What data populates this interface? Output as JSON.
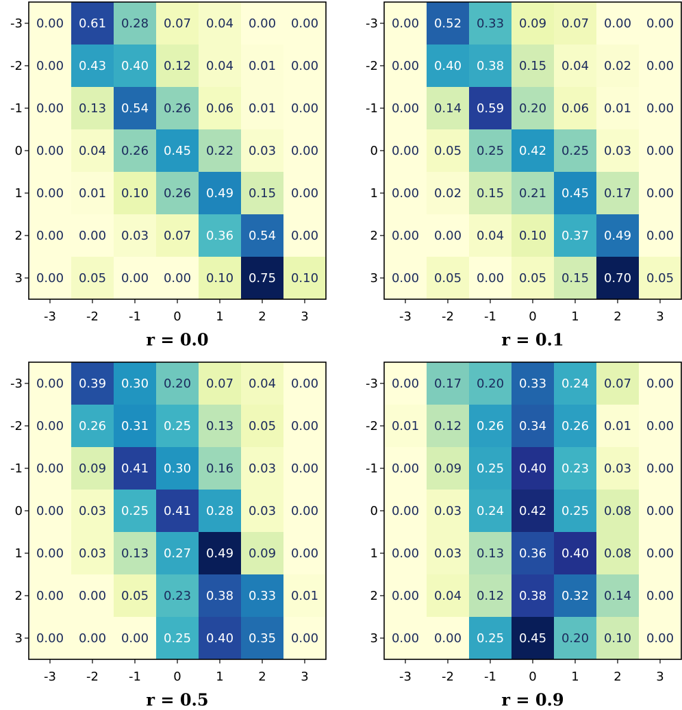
{
  "chart_data": [
    {
      "type": "heatmap",
      "title": "r = 0.0",
      "colormap": "YlGnBu",
      "categories": [
        "-3",
        "-2",
        "-1",
        "0",
        "1",
        "2",
        "3"
      ],
      "rows": [
        "-3",
        "-2",
        "-1",
        "0",
        "1",
        "2",
        "3"
      ],
      "values": [
        [
          0,
          0.61,
          0.28,
          0.07,
          0.04,
          0,
          0
        ],
        [
          0,
          0.43,
          0.4,
          0.12,
          0.04,
          0.01,
          0
        ],
        [
          0,
          0.13,
          0.54,
          0.26,
          0.06,
          0.01,
          0
        ],
        [
          0,
          0.04,
          0.26,
          0.45,
          0.22,
          0.03,
          0
        ],
        [
          0,
          0.01,
          0.1,
          0.26,
          0.49,
          0.15,
          0
        ],
        [
          0,
          0,
          0.03,
          0.07,
          0.36,
          0.54,
          0
        ],
        [
          0,
          0.05,
          0,
          0,
          0.1,
          0.75,
          0.1
        ]
      ],
      "value_labels": [
        [
          "0.00",
          "0.61",
          "0.28",
          "0.07",
          "0.04",
          "0.00",
          "0.00"
        ],
        [
          "0.00",
          "0.43",
          "0.40",
          "0.12",
          "0.04",
          "0.01",
          "0.00"
        ],
        [
          "0.00",
          "0.13",
          "0.54",
          "0.26",
          "0.06",
          "0.01",
          "0.00"
        ],
        [
          "0.00",
          "0.04",
          "0.26",
          "0.45",
          "0.22",
          "0.03",
          "0.00"
        ],
        [
          "0.00",
          "0.01",
          "0.10",
          "0.26",
          "0.49",
          "0.15",
          "0.00"
        ],
        [
          "0.00",
          "0.00",
          "0.03",
          "0.07",
          "0.36",
          "0.54",
          "0.00"
        ],
        [
          "0.00",
          "0.05",
          "0.00",
          "0.00",
          "0.10",
          "0.75",
          "0.10"
        ]
      ]
    },
    {
      "type": "heatmap",
      "title": "r = 0.1",
      "colormap": "YlGnBu",
      "categories": [
        "-3",
        "-2",
        "-1",
        "0",
        "1",
        "2",
        "3"
      ],
      "rows": [
        "-3",
        "-2",
        "-1",
        "0",
        "1",
        "2",
        "3"
      ],
      "values": [
        [
          0,
          0.52,
          0.33,
          0.09,
          0.07,
          0,
          0
        ],
        [
          0,
          0.4,
          0.38,
          0.15,
          0.04,
          0.02,
          0
        ],
        [
          0,
          0.14,
          0.59,
          0.2,
          0.06,
          0.01,
          0
        ],
        [
          0,
          0.05,
          0.25,
          0.42,
          0.25,
          0.03,
          0
        ],
        [
          0,
          0.02,
          0.15,
          0.21,
          0.45,
          0.17,
          0
        ],
        [
          0,
          0,
          0.04,
          0.1,
          0.37,
          0.49,
          0
        ],
        [
          0,
          0.05,
          0,
          0.05,
          0.15,
          0.7,
          0.05
        ]
      ],
      "value_labels": [
        [
          "0.00",
          "0.52",
          "0.33",
          "0.09",
          "0.07",
          "0.00",
          "0.00"
        ],
        [
          "0.00",
          "0.40",
          "0.38",
          "0.15",
          "0.04",
          "0.02",
          "0.00"
        ],
        [
          "0.00",
          "0.14",
          "0.59",
          "0.20",
          "0.06",
          "0.01",
          "0.00"
        ],
        [
          "0.00",
          "0.05",
          "0.25",
          "0.42",
          "0.25",
          "0.03",
          "0.00"
        ],
        [
          "0.00",
          "0.02",
          "0.15",
          "0.21",
          "0.45",
          "0.17",
          "0.00"
        ],
        [
          "0.00",
          "0.00",
          "0.04",
          "0.10",
          "0.37",
          "0.49",
          "0.00"
        ],
        [
          "0.00",
          "0.05",
          "0.00",
          "0.05",
          "0.15",
          "0.70",
          "0.05"
        ]
      ]
    },
    {
      "type": "heatmap",
      "title": "r = 0.5",
      "colormap": "YlGnBu",
      "categories": [
        "-3",
        "-2",
        "-1",
        "0",
        "1",
        "2",
        "3"
      ],
      "rows": [
        "-3",
        "-2",
        "-1",
        "0",
        "1",
        "2",
        "3"
      ],
      "values": [
        [
          0,
          0.39,
          0.3,
          0.2,
          0.07,
          0.04,
          0
        ],
        [
          0,
          0.26,
          0.31,
          0.25,
          0.13,
          0.05,
          0
        ],
        [
          0,
          0.09,
          0.41,
          0.3,
          0.16,
          0.03,
          0
        ],
        [
          0,
          0.03,
          0.25,
          0.41,
          0.28,
          0.03,
          0
        ],
        [
          0,
          0.03,
          0.13,
          0.27,
          0.49,
          0.09,
          0
        ],
        [
          0,
          0,
          0.05,
          0.23,
          0.38,
          0.33,
          0.01
        ],
        [
          0,
          0,
          0,
          0.25,
          0.4,
          0.35,
          0
        ]
      ],
      "value_labels": [
        [
          "0.00",
          "0.39",
          "0.30",
          "0.20",
          "0.07",
          "0.04",
          "0.00"
        ],
        [
          "0.00",
          "0.26",
          "0.31",
          "0.25",
          "0.13",
          "0.05",
          "0.00"
        ],
        [
          "0.00",
          "0.09",
          "0.41",
          "0.30",
          "0.16",
          "0.03",
          "0.00"
        ],
        [
          "0.00",
          "0.03",
          "0.25",
          "0.41",
          "0.28",
          "0.03",
          "0.00"
        ],
        [
          "0.00",
          "0.03",
          "0.13",
          "0.27",
          "0.49",
          "0.09",
          "0.00"
        ],
        [
          "0.00",
          "0.00",
          "0.05",
          "0.23",
          "0.38",
          "0.33",
          "0.01"
        ],
        [
          "0.00",
          "0.00",
          "0.00",
          "0.25",
          "0.40",
          "0.35",
          "0.00"
        ]
      ]
    },
    {
      "type": "heatmap",
      "title": "r = 0.9",
      "colormap": "YlGnBu",
      "categories": [
        "-3",
        "-2",
        "-1",
        "0",
        "1",
        "2",
        "3"
      ],
      "rows": [
        "-3",
        "-2",
        "-1",
        "0",
        "1",
        "2",
        "3"
      ],
      "values": [
        [
          0,
          0.17,
          0.2,
          0.33,
          0.24,
          0.07,
          0
        ],
        [
          0.01,
          0.12,
          0.26,
          0.34,
          0.26,
          0.01,
          0
        ],
        [
          0,
          0.09,
          0.25,
          0.4,
          0.23,
          0.03,
          0
        ],
        [
          0,
          0.03,
          0.24,
          0.42,
          0.25,
          0.08,
          0
        ],
        [
          0,
          0.03,
          0.13,
          0.36,
          0.4,
          0.08,
          0
        ],
        [
          0,
          0.04,
          0.12,
          0.38,
          0.32,
          0.14,
          0
        ],
        [
          0,
          0,
          0.25,
          0.45,
          0.2,
          0.1,
          0
        ]
      ],
      "value_labels": [
        [
          "0.00",
          "0.17",
          "0.20",
          "0.33",
          "0.24",
          "0.07",
          "0.00"
        ],
        [
          "0.01",
          "0.12",
          "0.26",
          "0.34",
          "0.26",
          "0.01",
          "0.00"
        ],
        [
          "0.00",
          "0.09",
          "0.25",
          "0.40",
          "0.23",
          "0.03",
          "0.00"
        ],
        [
          "0.00",
          "0.03",
          "0.24",
          "0.42",
          "0.25",
          "0.08",
          "0.00"
        ],
        [
          "0.00",
          "0.03",
          "0.13",
          "0.36",
          "0.40",
          "0.08",
          "0.00"
        ],
        [
          "0.00",
          "0.04",
          "0.12",
          "0.38",
          "0.32",
          "0.14",
          "0.00"
        ],
        [
          "0.00",
          "0.00",
          "0.25",
          "0.45",
          "0.20",
          "0.10",
          "0.00"
        ]
      ]
    }
  ]
}
